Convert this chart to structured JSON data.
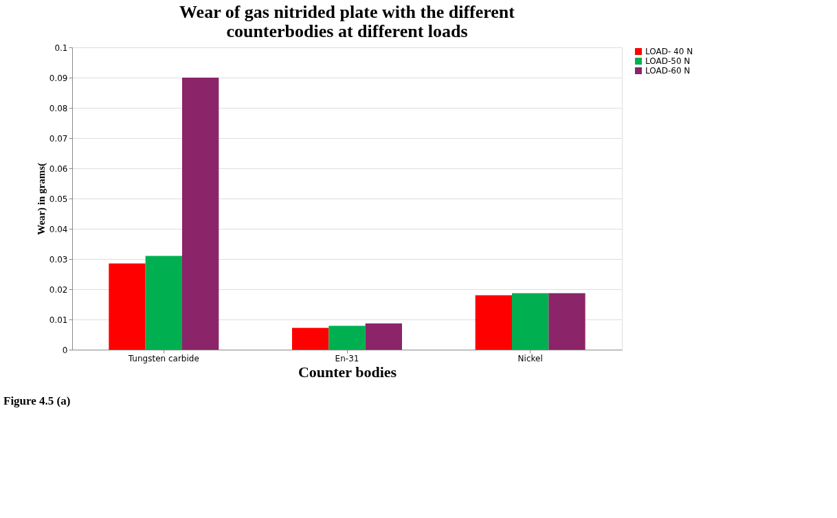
{
  "chart_data": {
    "type": "bar",
    "title": [
      "Wear of gas nitrided plate with the different",
      "counterbodies at different loads"
    ],
    "xlabel": "Counter bodies",
    "ylabel": "Wear) in grams(",
    "categories": [
      "Tungsten carbide",
      "En-31",
      "Nickel"
    ],
    "series": [
      {
        "name": "LOAD- 40 N",
        "color": "#ff0000",
        "values": [
          0.0285,
          0.0072,
          0.018
        ]
      },
      {
        "name": "LOAD-50 N",
        "color": "#00b050",
        "values": [
          0.031,
          0.0079,
          0.0187
        ]
      },
      {
        "name": "LOAD-60 N",
        "color": "#8b2468",
        "values": [
          0.09,
          0.0087,
          0.0187
        ]
      }
    ],
    "ylim": [
      0,
      0.1
    ],
    "yticks": [
      0,
      0.01,
      0.02,
      0.03,
      0.04,
      0.05,
      0.06,
      0.07,
      0.08,
      0.09,
      0.1
    ],
    "grid": "y",
    "legend": "right",
    "annotations": [
      "Figure 4.5 (a)"
    ]
  }
}
